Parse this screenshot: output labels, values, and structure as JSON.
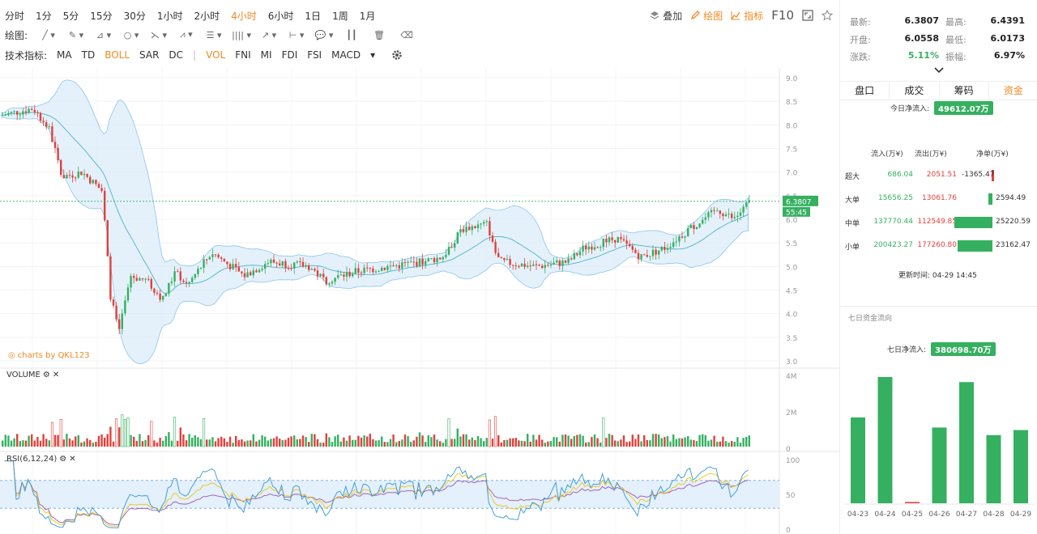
{
  "timebar": {
    "periods": [
      "分时",
      "1分",
      "5分",
      "15分",
      "30分",
      "1小时",
      "2小时",
      "4小时",
      "6小时",
      "1日",
      "1周",
      "1月"
    ],
    "active_period": "4小时"
  },
  "toolbar": {
    "overlay_label": "叠加",
    "draw_label": "绘图",
    "indicator_label": "指标",
    "f10_label": "F10"
  },
  "drawbar": {
    "label": "绘图:"
  },
  "indicators": {
    "label": "技术指标:",
    "main": [
      "MA",
      "TD",
      "BOLL",
      "SAR",
      "DC"
    ],
    "sub": [
      "VOL",
      "FNI",
      "MI",
      "FDI",
      "FSI",
      "MACD"
    ],
    "active": [
      "BOLL",
      "VOL"
    ]
  },
  "main_chart": {
    "price_ticks": [
      "9.0",
      "8.5",
      "8.0",
      "7.5",
      "7.0",
      "6.5",
      "6.0",
      "5.5",
      "5.0",
      "4.5",
      "4.0",
      "3.5",
      "3.0"
    ],
    "ymin": 3.0,
    "ymax": 9.0,
    "last_price_tag": "6.3807",
    "countdown_tag": "55:45",
    "watermark": "charts by QKL123"
  },
  "volume_chart": {
    "title": "VOLUME",
    "ticks": [
      "4M",
      "2M",
      "0"
    ]
  },
  "rsi_chart": {
    "title": "RSI(6,12,24)",
    "ticks": [
      "100",
      "50",
      "0"
    ]
  },
  "colors": {
    "up": "#35b060",
    "down": "#e0413c",
    "accent": "#f08a24",
    "band_fill": "#d9ebfa",
    "band_line": "#8cc4ee"
  },
  "quote": {
    "latest_label": "最新:",
    "latest": "6.3807",
    "high_label": "最高:",
    "high": "6.4391",
    "open_label": "开盘:",
    "open": "6.0558",
    "low_label": "最低:",
    "low": "6.0173",
    "change_label": "涨跌:",
    "change": "5.11%",
    "amplitude_label": "振幅:",
    "amplitude": "6.97%"
  },
  "tabs": [
    "盘口",
    "成交",
    "筹码",
    "资金"
  ],
  "active_tab": "资金",
  "fund_flow": {
    "today_label": "今日净流入:",
    "today_value": "49612.07万",
    "headers": {
      "in": "流入(万¥)",
      "out": "流出(万¥)",
      "net": "净单(万¥)"
    },
    "rows": [
      {
        "name": "超大",
        "in": "686.04",
        "out": "2051.51",
        "net": "-1365.47",
        "net_value": -1365.47
      },
      {
        "name": "大单",
        "in": "15656.25",
        "out": "13061.76",
        "net": "2594.49",
        "net_value": 2594.49
      },
      {
        "name": "中单",
        "in": "137770.44",
        "out": "112549.85",
        "net": "25220.59",
        "net_value": 25220.59
      },
      {
        "name": "小单",
        "in": "200423.27",
        "out": "177260.80",
        "net": "23162.47",
        "net_value": 23162.47
      }
    ],
    "update_label": "更新时间:",
    "update_time": "04-29 14:45"
  },
  "seven_day": {
    "title": "七日资金流向",
    "net_label": "七日净流入:",
    "net_value": "380698.70万",
    "chart_data": {
      "type": "bar",
      "categories": [
        "04-23",
        "04-24",
        "04-25",
        "04-26",
        "04-27",
        "04-28",
        "04-29"
      ],
      "values": [
        0.68,
        1.0,
        0.01,
        0.6,
        0.96,
        0.54,
        0.58
      ],
      "colors": [
        "#35b060",
        "#35b060",
        "#e0413c",
        "#35b060",
        "#35b060",
        "#35b060",
        "#35b060"
      ]
    }
  }
}
